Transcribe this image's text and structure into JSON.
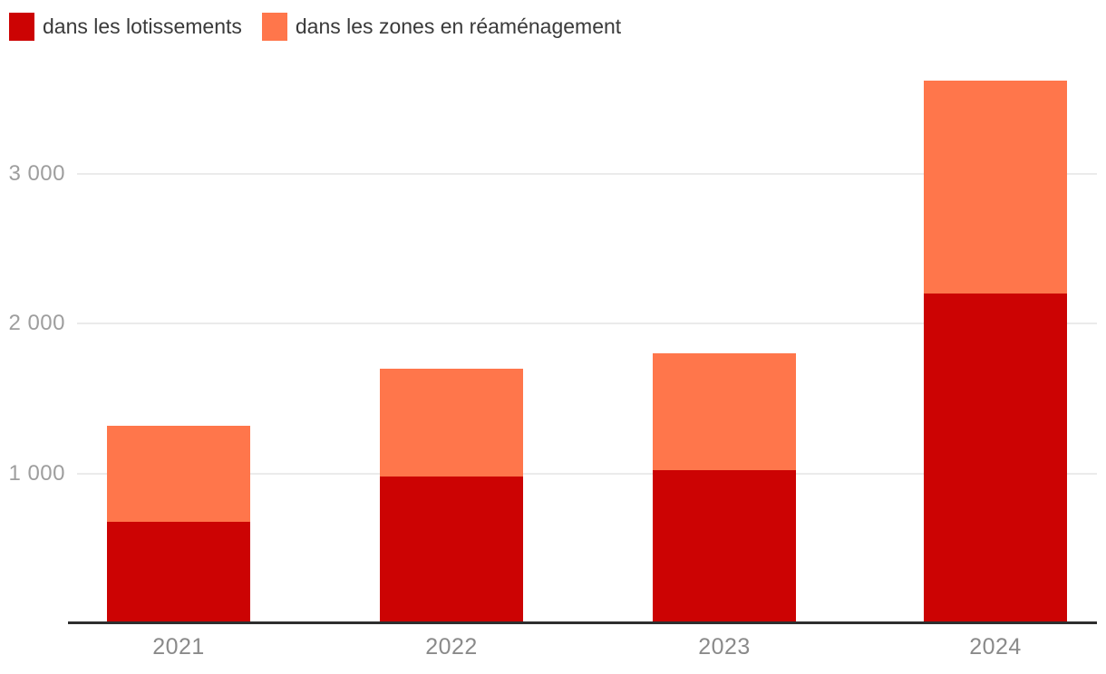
{
  "chart_data": {
    "type": "bar",
    "stacked": true,
    "title": "",
    "xlabel": "",
    "ylabel": "",
    "grid": "horizontal",
    "legend_position": "top-left",
    "categories": [
      "2021",
      "2022",
      "2023",
      "2024"
    ],
    "series": [
      {
        "name": "dans les lotissements",
        "color": "#CC0303",
        "values": [
          675,
          980,
          1020,
          2200
        ]
      },
      {
        "name": "dans les zones en réaménagement",
        "color": "#FF764B",
        "values": [
          645,
          720,
          780,
          1420
        ]
      }
    ],
    "y_axis": {
      "range": [
        0,
        3700
      ],
      "ticks": [
        {
          "value": 1000,
          "label": "1 000"
        },
        {
          "value": 2000,
          "label": "2 000"
        },
        {
          "value": 3000,
          "label": "3 000"
        }
      ]
    }
  },
  "colors": {
    "background": "#ffffff",
    "grid_line": "#ebebeb",
    "axis_line": "#2e2e2e",
    "y_tick_text": "#9e9e9e",
    "x_tick_text": "#8a8a8a",
    "legend_text": "#3a3a3a"
  }
}
